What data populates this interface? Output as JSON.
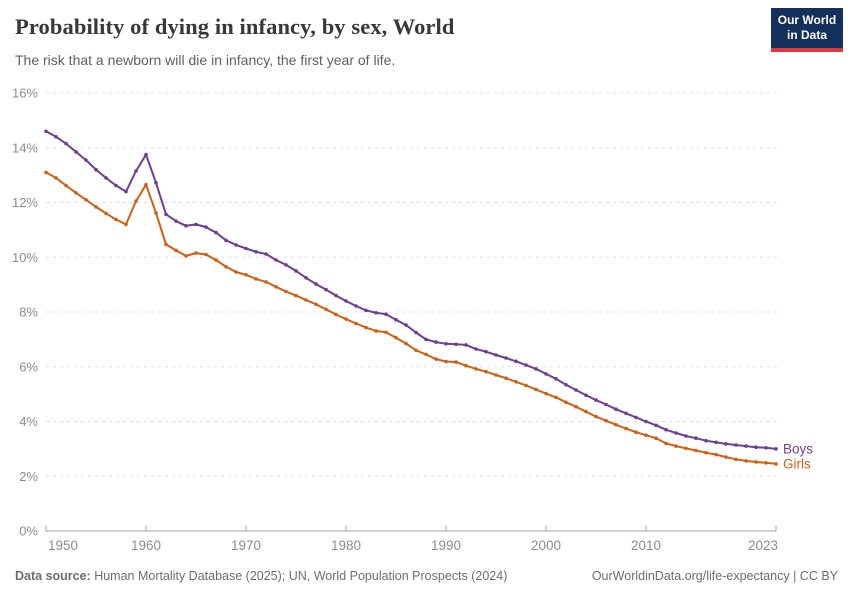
{
  "header": {
    "logo": {
      "line1": "Our World",
      "line2": "in Data"
    }
  },
  "footer": {
    "source_label": "Data source:",
    "source_text": " Human Mortality Database (2025); UN, World Population Prospects (2024)",
    "citation": "OurWorldinData.org/life-expectancy | CC BY"
  },
  "colors": {
    "boys": "#6D3E91",
    "girls": "#CE6014",
    "grid": "#e0e0e0",
    "axis": "#a3a3a3",
    "tick_text": "#8c8c8c",
    "logo_bg": "#12305B",
    "logo_stripe": "#E0373F"
  },
  "chart_data": {
    "type": "line",
    "title": "Probability of dying in infancy, by sex, World",
    "subtitle": "The risk that a newborn will die in infancy, the first year of life.",
    "xlabel": "",
    "ylabel": "",
    "ylim": [
      0,
      16
    ],
    "y_ticks": [
      0,
      2,
      4,
      6,
      8,
      10,
      12,
      14,
      16
    ],
    "y_tick_suffix": "%",
    "x_ticks": [
      1950,
      1960,
      1970,
      1980,
      1990,
      2000,
      2010,
      2023
    ],
    "grid": "horizontal-dashed",
    "legend_position": "end-of-line-labels",
    "x": [
      1950,
      1951,
      1952,
      1953,
      1954,
      1955,
      1956,
      1957,
      1958,
      1959,
      1960,
      1961,
      1962,
      1963,
      1964,
      1965,
      1966,
      1967,
      1968,
      1969,
      1970,
      1971,
      1972,
      1973,
      1974,
      1975,
      1976,
      1977,
      1978,
      1979,
      1980,
      1981,
      1982,
      1983,
      1984,
      1985,
      1986,
      1987,
      1988,
      1989,
      1990,
      1991,
      1992,
      1993,
      1994,
      1995,
      1996,
      1997,
      1998,
      1999,
      2000,
      2001,
      2002,
      2003,
      2004,
      2005,
      2006,
      2007,
      2008,
      2009,
      2010,
      2011,
      2012,
      2013,
      2014,
      2015,
      2016,
      2017,
      2018,
      2019,
      2020,
      2021,
      2022,
      2023
    ],
    "series": [
      {
        "name": "Boys",
        "color": "#6D3E91",
        "values": [
          14.6,
          14.4,
          14.15,
          13.85,
          13.55,
          13.2,
          12.9,
          12.62,
          12.4,
          13.15,
          13.75,
          12.72,
          11.57,
          11.32,
          11.15,
          11.2,
          11.1,
          10.9,
          10.62,
          10.45,
          10.32,
          10.2,
          10.12,
          9.9,
          9.72,
          9.5,
          9.25,
          9.02,
          8.82,
          8.6,
          8.4,
          8.22,
          8.06,
          7.97,
          7.92,
          7.72,
          7.52,
          7.25,
          7.0,
          6.9,
          6.84,
          6.82,
          6.8,
          6.65,
          6.55,
          6.43,
          6.32,
          6.2,
          6.06,
          5.92,
          5.74,
          5.56,
          5.34,
          5.15,
          4.96,
          4.78,
          4.62,
          4.45,
          4.3,
          4.15,
          4.0,
          3.86,
          3.7,
          3.58,
          3.47,
          3.39,
          3.3,
          3.24,
          3.18,
          3.14,
          3.1,
          3.06,
          3.04,
          3.0
        ]
      },
      {
        "name": "Girls",
        "color": "#CE6014",
        "values": [
          13.1,
          12.9,
          12.62,
          12.35,
          12.1,
          11.84,
          11.6,
          11.38,
          11.2,
          12.05,
          12.65,
          11.62,
          10.47,
          10.25,
          10.05,
          10.15,
          10.1,
          9.9,
          9.65,
          9.46,
          9.36,
          9.21,
          9.1,
          8.92,
          8.75,
          8.6,
          8.44,
          8.28,
          8.1,
          7.91,
          7.74,
          7.58,
          7.43,
          7.31,
          7.26,
          7.06,
          6.85,
          6.6,
          6.45,
          6.28,
          6.19,
          6.17,
          6.04,
          5.92,
          5.82,
          5.7,
          5.58,
          5.45,
          5.32,
          5.17,
          5.02,
          4.88,
          4.7,
          4.54,
          4.36,
          4.18,
          4.03,
          3.88,
          3.74,
          3.61,
          3.5,
          3.39,
          3.2,
          3.1,
          3.02,
          2.94,
          2.86,
          2.79,
          2.7,
          2.62,
          2.56,
          2.52,
          2.49,
          2.45
        ]
      }
    ]
  }
}
